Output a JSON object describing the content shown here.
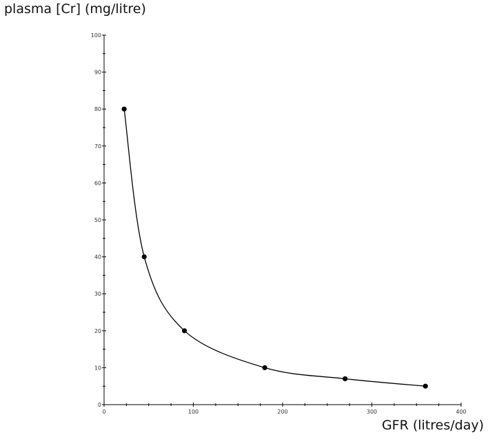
{
  "chart_data": {
    "type": "line",
    "title": "",
    "xlabel": "GFR (litres/day)",
    "ylabel": "plasma [Cr] (mg/litre)",
    "xlim": [
      0,
      400
    ],
    "ylim": [
      0,
      100
    ],
    "x_ticks": [
      "0",
      "100",
      "200",
      "300",
      "400"
    ],
    "y_ticks": [
      "0",
      "10",
      "20",
      "30",
      "40",
      "50",
      "60",
      "70",
      "80",
      "90",
      "100"
    ],
    "grid": false,
    "series": [
      {
        "x": [
          22.5,
          45,
          90,
          180,
          270,
          360
        ],
        "values": [
          80,
          40,
          20,
          10,
          7,
          5
        ],
        "color": "#000000"
      }
    ]
  }
}
